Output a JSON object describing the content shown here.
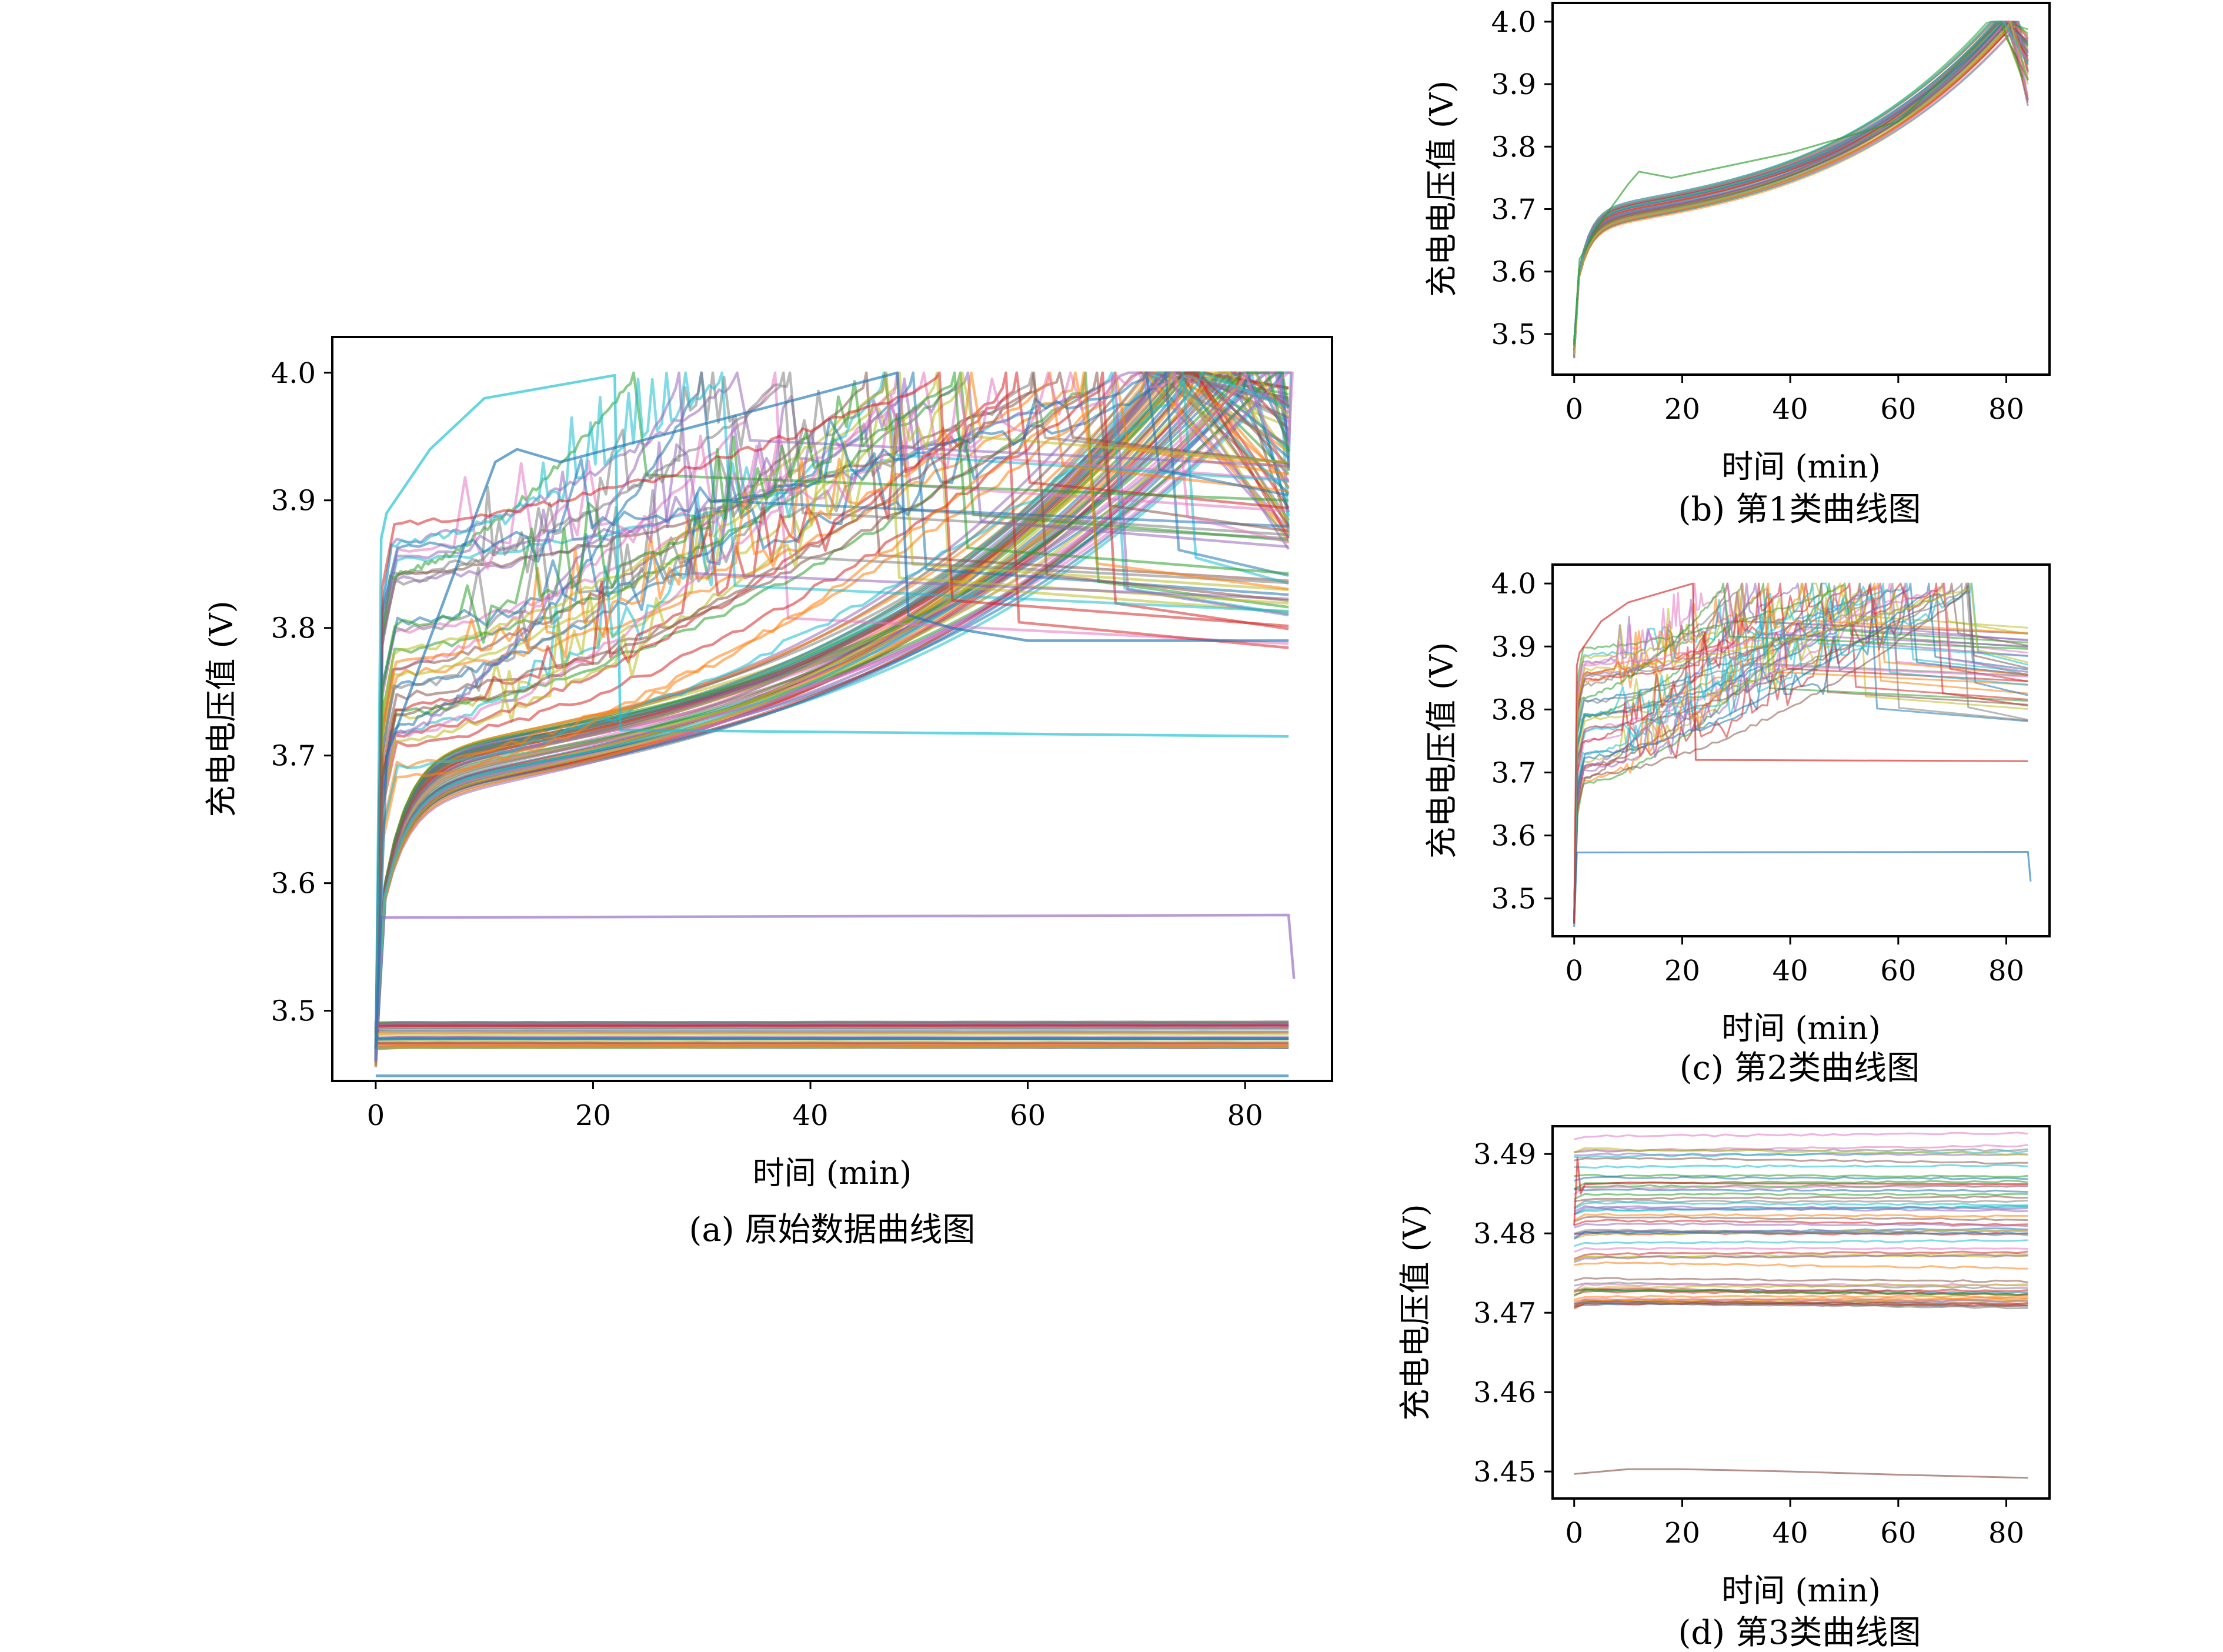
{
  "figure": {
    "colors": [
      "#1f77b4",
      "#ff7f0e",
      "#2ca02c",
      "#d62728",
      "#9467bd",
      "#8c564b",
      "#e377c2",
      "#7f7f7f",
      "#bcbd22",
      "#17becf"
    ]
  },
  "chart_data": [
    {
      "id": "a",
      "type": "line",
      "caption": "(a)  原始数据曲线图",
      "xlabel": "时间 (min)",
      "ylabel": "充电电压值 (V)",
      "xlim": [
        -4,
        88
      ],
      "ylim": [
        3.445,
        4.028
      ],
      "xticks": [
        0,
        20,
        40,
        60,
        80
      ],
      "xtick_labels": [
        "0",
        "20",
        "40",
        "60",
        "80"
      ],
      "yticks": [
        3.5,
        3.6,
        3.7,
        3.8,
        3.9,
        4.0
      ],
      "ytick_labels": [
        "3.5",
        "3.6",
        "3.7",
        "3.8",
        "3.9",
        "4.0"
      ],
      "grid": false,
      "legend": "none",
      "series_groups": [
        {
          "kind": "charge_band",
          "count": 60,
          "start_v": [
            3.455,
            3.49
          ],
          "knee_v": [
            3.66,
            3.7
          ],
          "end_v": 4.0,
          "t_full": [
            70,
            84
          ]
        },
        {
          "kind": "plateau",
          "count": 36,
          "v": [
            3.471,
            3.492
          ],
          "t_end": 84
        },
        {
          "kind": "anomaly",
          "count": 40,
          "start_v": [
            3.46,
            3.9
          ],
          "end_v": [
            3.85,
            4.0
          ],
          "t_full": [
            22,
            74
          ]
        }
      ],
      "special_series": [
        {
          "x": [
            0,
            0.5,
            1,
            5,
            10,
            22,
            22.5,
            84
          ],
          "y": [
            3.46,
            3.87,
            3.89,
            3.94,
            3.98,
            3.998,
            3.72,
            3.715
          ],
          "color": "#17becf"
        },
        {
          "x": [
            0,
            0.5,
            84,
            84.5
          ],
          "y": [
            3.46,
            3.573,
            3.575,
            3.525
          ],
          "color": "#9467bd"
        },
        {
          "x": [
            0,
            84
          ],
          "y": [
            3.449,
            3.449
          ],
          "color": "#1f77b4"
        },
        {
          "x": [
            0,
            1,
            11,
            13,
            17,
            48,
            49,
            53,
            60,
            84
          ],
          "y": [
            3.47,
            3.7,
            3.93,
            3.94,
            3.93,
            4.0,
            3.81,
            3.8,
            3.79,
            3.79
          ],
          "color": "#1f77b4"
        }
      ]
    },
    {
      "id": "b",
      "type": "line",
      "caption": "(b)  第1类曲线图",
      "xlabel": "时间 (min)",
      "ylabel": "充电电压值 (V)",
      "xlim": [
        -4,
        88
      ],
      "ylim": [
        3.435,
        4.03
      ],
      "xticks": [
        0,
        20,
        40,
        60,
        80
      ],
      "xtick_labels": [
        "0",
        "20",
        "40",
        "60",
        "80"
      ],
      "yticks": [
        3.5,
        3.6,
        3.7,
        3.8,
        3.9,
        4.0
      ],
      "ytick_labels": [
        "3.5",
        "3.6",
        "3.7",
        "3.8",
        "3.9",
        "4.0"
      ],
      "grid": false,
      "legend": "none",
      "series_groups": [
        {
          "kind": "charge_band",
          "count": 50,
          "start_v": [
            3.46,
            3.49
          ],
          "knee_v": [
            3.665,
            3.7
          ],
          "end_v": 4.0,
          "t_full": [
            78,
            82
          ]
        }
      ],
      "special_series": [
        {
          "x": [
            0,
            1,
            5,
            10,
            12,
            18,
            40,
            60,
            79,
            80,
            83
          ],
          "y": [
            3.48,
            3.62,
            3.68,
            3.74,
            3.76,
            3.75,
            3.79,
            3.84,
            4.0,
            3.98,
            3.91
          ],
          "color": "#2ca02c"
        }
      ]
    },
    {
      "id": "c",
      "type": "line",
      "caption": "(c)  第2类曲线图",
      "xlabel": "时间 (min)",
      "ylabel": "充电电压值 (V)",
      "xlim": [
        -4,
        88
      ],
      "ylim": [
        3.44,
        4.03
      ],
      "xticks": [
        0,
        20,
        40,
        60,
        80
      ],
      "xtick_labels": [
        "0",
        "20",
        "40",
        "60",
        "80"
      ],
      "yticks": [
        3.5,
        3.6,
        3.7,
        3.8,
        3.9,
        4.0
      ],
      "ytick_labels": [
        "3.5",
        "3.6",
        "3.7",
        "3.8",
        "3.9",
        "4.0"
      ],
      "grid": false,
      "legend": "none",
      "series_groups": [
        {
          "kind": "anomaly",
          "count": 40,
          "start_v": [
            3.46,
            3.9
          ],
          "end_v": [
            3.85,
            4.0
          ],
          "t_full": [
            22,
            74
          ]
        }
      ],
      "special_series": [
        {
          "x": [
            0,
            0.5,
            84,
            84.5
          ],
          "y": [
            3.455,
            3.573,
            3.574,
            3.527
          ],
          "color": "#1f77b4"
        },
        {
          "x": [
            0,
            0.5,
            1,
            5,
            10,
            22,
            22.5,
            84
          ],
          "y": [
            3.46,
            3.87,
            3.89,
            3.94,
            3.97,
            4.0,
            3.72,
            3.718
          ],
          "color": "#d62728"
        }
      ]
    },
    {
      "id": "d",
      "type": "line",
      "caption": "(d)  第3类曲线图",
      "xlabel": "时间 (min)",
      "ylabel": "充电电压值 (V)",
      "xlim": [
        -4,
        88
      ],
      "ylim": [
        3.4466,
        3.4935
      ],
      "xticks": [
        0,
        20,
        40,
        60,
        80
      ],
      "xtick_labels": [
        "0",
        "20",
        "40",
        "60",
        "80"
      ],
      "yticks": [
        3.45,
        3.46,
        3.47,
        3.48,
        3.49
      ],
      "ytick_labels": [
        "3.45",
        "3.46",
        "3.47",
        "3.48",
        "3.49"
      ],
      "grid": false,
      "legend": "none",
      "series_groups": [
        {
          "kind": "flat",
          "count": 60,
          "v": [
            3.471,
            3.4925
          ],
          "t_end": 84
        }
      ],
      "special_series": [
        {
          "x": [
            0,
            10,
            20,
            40,
            60,
            84
          ],
          "y": [
            3.4497,
            3.4503,
            3.4503,
            3.45,
            3.4496,
            3.4492
          ],
          "color": "#8c564b"
        },
        {
          "x": [
            0,
            0.6,
            1.2,
            2,
            3,
            10,
            30,
            84
          ],
          "y": [
            3.481,
            3.4895,
            3.485,
            3.4862,
            3.4862,
            3.4864,
            3.4863,
            3.4862
          ],
          "color": "#d62728"
        }
      ]
    }
  ]
}
